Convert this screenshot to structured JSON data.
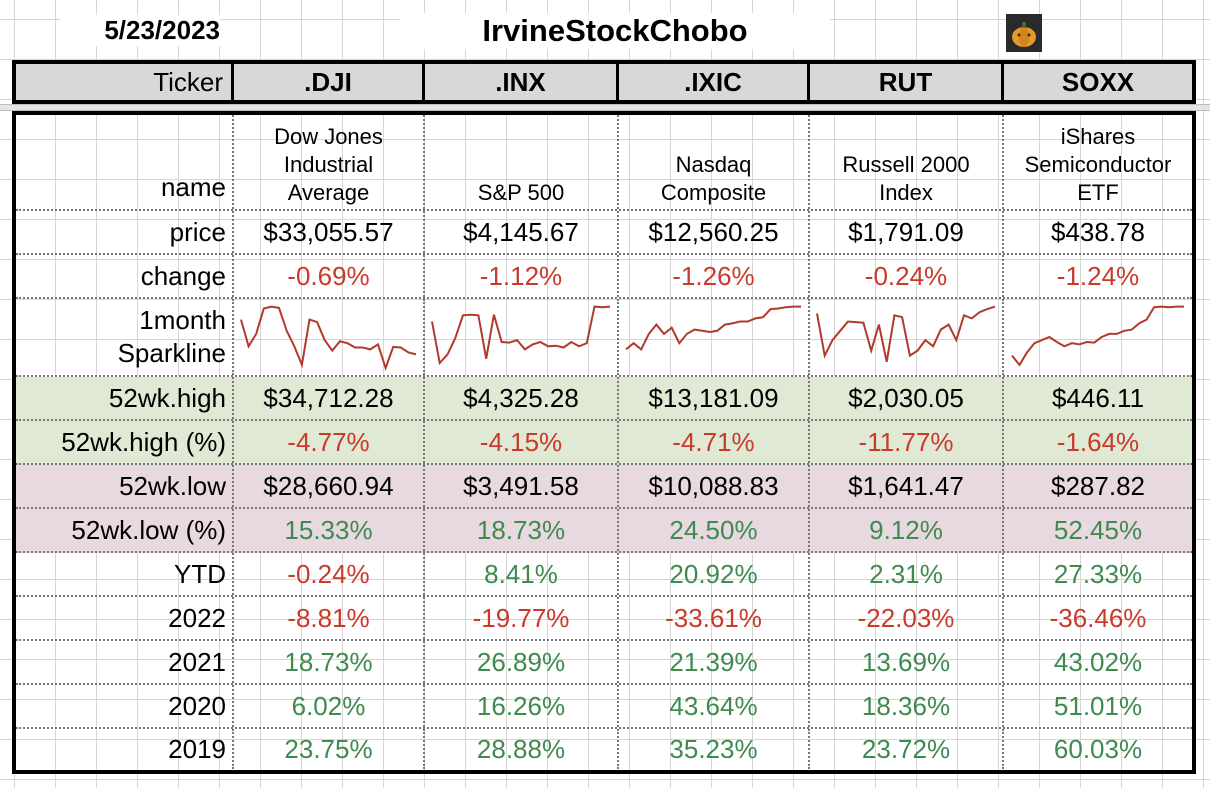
{
  "header": {
    "date": "5/23/2023",
    "title": "IrvineStockChobo"
  },
  "columns": {
    "label_header": "Ticker",
    "tickers": [
      ".DJI",
      ".INX",
      ".IXIC",
      "RUT",
      "SOXX"
    ]
  },
  "rows": {
    "name": {
      "label": "name",
      "values": [
        "Dow Jones\nIndustrial\nAverage",
        "S&P 500",
        "Nasdaq\nComposite",
        "Russell 2000\nIndex",
        "iShares\nSemiconductor\nETF"
      ]
    },
    "price": {
      "label": "price",
      "values": [
        "$33,055.57",
        "$4,145.67",
        "$12,560.25",
        "$1,791.09",
        "$438.78"
      ]
    },
    "change": {
      "label": "change",
      "values": [
        "-0.69%",
        "-1.12%",
        "-1.26%",
        "-0.24%",
        "-1.24%"
      ]
    },
    "sparkline": {
      "label_line1": "1month",
      "label_line2": "Sparkline",
      "line_color": "#b03a2e",
      "series": [
        [
          0.78,
          0.35,
          0.55,
          0.96,
          0.99,
          0.97,
          0.6,
          0.35,
          0.05,
          0.78,
          0.74,
          0.45,
          0.28,
          0.43,
          0.4,
          0.33,
          0.33,
          0.3,
          0.38,
          0.0,
          0.34,
          0.33,
          0.25,
          0.22
        ],
        [
          0.75,
          0.08,
          0.22,
          0.48,
          0.85,
          0.86,
          0.85,
          0.15,
          0.86,
          0.42,
          0.41,
          0.45,
          0.3,
          0.38,
          0.42,
          0.35,
          0.36,
          0.33,
          0.42,
          0.35,
          0.4,
          0.99,
          0.98,
          0.99
        ],
        [
          0.3,
          0.4,
          0.3,
          0.55,
          0.7,
          0.55,
          0.65,
          0.4,
          0.55,
          0.62,
          0.6,
          0.58,
          0.6,
          0.7,
          0.72,
          0.75,
          0.75,
          0.8,
          0.82,
          0.95,
          0.96,
          0.98,
          0.99,
          0.99
        ],
        [
          0.88,
          0.2,
          0.45,
          0.6,
          0.75,
          0.74,
          0.73,
          0.28,
          0.7,
          0.1,
          0.85,
          0.82,
          0.2,
          0.28,
          0.45,
          0.35,
          0.62,
          0.7,
          0.45,
          0.85,
          0.8,
          0.9,
          0.95,
          0.99
        ],
        [
          0.2,
          0.05,
          0.25,
          0.4,
          0.45,
          0.5,
          0.42,
          0.35,
          0.4,
          0.38,
          0.42,
          0.41,
          0.5,
          0.55,
          0.55,
          0.6,
          0.62,
          0.72,
          0.78,
          0.98,
          0.99,
          0.98,
          0.99,
          0.99
        ]
      ]
    },
    "high52": {
      "label": "52wk.high",
      "values": [
        "$34,712.28",
        "$4,325.28",
        "$13,181.09",
        "$2,030.05",
        "$446.11"
      ]
    },
    "high52pct": {
      "label": "52wk.high (%)",
      "values": [
        "-4.77%",
        "-4.15%",
        "-4.71%",
        "-11.77%",
        "-1.64%"
      ]
    },
    "low52": {
      "label": "52wk.low",
      "values": [
        "$28,660.94",
        "$3,491.58",
        "$10,088.83",
        "$1,641.47",
        "$287.82"
      ]
    },
    "low52pct": {
      "label": "52wk.low (%)",
      "values": [
        "15.33%",
        "18.73%",
        "24.50%",
        "9.12%",
        "52.45%"
      ]
    },
    "ytd": {
      "label": "YTD",
      "values": [
        "-0.24%",
        "8.41%",
        "20.92%",
        "2.31%",
        "27.33%"
      ]
    },
    "y2022": {
      "label": "2022",
      "values": [
        "-8.81%",
        "-19.77%",
        "-33.61%",
        "-22.03%",
        "-36.46%"
      ]
    },
    "y2021": {
      "label": "2021",
      "values": [
        "18.73%",
        "26.89%",
        "21.39%",
        "13.69%",
        "43.02%"
      ]
    },
    "y2020": {
      "label": "2020",
      "values": [
        "6.02%",
        "16.26%",
        "43.64%",
        "18.36%",
        "51.01%"
      ]
    },
    "y2019": {
      "label": "2019",
      "values": [
        "23.75%",
        "28.88%",
        "35.23%",
        "23.72%",
        "60.03%"
      ]
    }
  },
  "colors": {
    "negative": "#c83a2a",
    "positive": "#3f8a4e",
    "high_band": "#dfe9d4",
    "low_band": "#e8d8e0"
  }
}
